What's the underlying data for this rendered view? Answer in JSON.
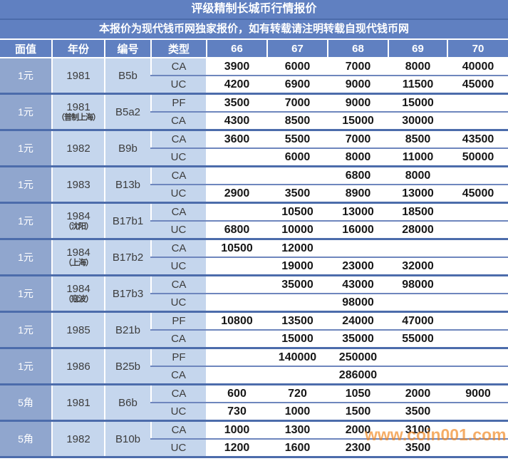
{
  "title": "评级精制长城币行情报价",
  "subtitle": "本报价为现代钱币网独家报价，如有转载请注明转载自现代钱币网",
  "columns": [
    "面值",
    "年份",
    "编号",
    "类型",
    "66",
    "67",
    "68",
    "69",
    "70"
  ],
  "watermark": {
    "text": "www.coin001.com",
    "color": "#F0861F"
  },
  "colors": {
    "header_blue": "#6080C1",
    "face_value_blue": "#90A6CE",
    "light_cell_blue": "#C5D6ED",
    "group_divider_blue": "#4C6CAB",
    "sub_divider_blue": "#6E86BD",
    "value_text": "#161616",
    "header_text": "#FFFFFF"
  },
  "rows": [
    {
      "face_value": "1元",
      "year": "1981",
      "year_note": "",
      "code": "B5b",
      "sub_rows": [
        {
          "type": "CA",
          "values": [
            "3900",
            "6000",
            "7000",
            "8000",
            "40000"
          ]
        },
        {
          "type": "UC",
          "values": [
            "4200",
            "6900",
            "9000",
            "11500",
            "45000"
          ]
        }
      ]
    },
    {
      "face_value": "1元",
      "year": "1981",
      "year_note": "（普制上海）",
      "code": "B5a2",
      "sub_rows": [
        {
          "type": "PF",
          "values": [
            "3500",
            "7000",
            "9000",
            "15000",
            ""
          ]
        },
        {
          "type": "CA",
          "values": [
            "4300",
            "8500",
            "15000",
            "30000",
            ""
          ]
        }
      ]
    },
    {
      "face_value": "1元",
      "year": "1982",
      "year_note": "",
      "code": "B9b",
      "sub_rows": [
        {
          "type": "CA",
          "values": [
            "3600",
            "5500",
            "7000",
            "8500",
            "43500"
          ]
        },
        {
          "type": "UC",
          "values": [
            "",
            "6000",
            "8000",
            "11000",
            "50000"
          ]
        }
      ]
    },
    {
      "face_value": "1元",
      "year": "1983",
      "year_note": "",
      "code": "B13b",
      "sub_rows": [
        {
          "type": "CA",
          "values": [
            "",
            "",
            "6800",
            "8000",
            ""
          ]
        },
        {
          "type": "UC",
          "values": [
            "2900",
            "3500",
            "8900",
            "13000",
            "45000"
          ]
        }
      ]
    },
    {
      "face_value": "1元",
      "year": "1984",
      "year_note": "（沈阳）",
      "code": "B17b1",
      "sub_rows": [
        {
          "type": "CA",
          "values": [
            "",
            "10500",
            "13000",
            "18500",
            ""
          ]
        },
        {
          "type": "UC",
          "values": [
            "6800",
            "10000",
            "16000",
            "28000",
            ""
          ]
        }
      ]
    },
    {
      "face_value": "1元",
      "year": "1984",
      "year_note": "（上海）",
      "code": "B17b2",
      "sub_rows": [
        {
          "type": "CA",
          "values": [
            "10500",
            "12000",
            "",
            "",
            ""
          ]
        },
        {
          "type": "UC",
          "values": [
            "",
            "19000",
            "23000",
            "32000",
            ""
          ]
        }
      ]
    },
    {
      "face_value": "1元",
      "year": "1984",
      "year_note": "（寇波）",
      "code": "B17b3",
      "sub_rows": [
        {
          "type": "CA",
          "values": [
            "",
            "35000",
            "43000",
            "98000",
            ""
          ]
        },
        {
          "type": "UC",
          "values": [
            "",
            "",
            "98000",
            "",
            ""
          ]
        }
      ]
    },
    {
      "face_value": "1元",
      "year": "1985",
      "year_note": "",
      "code": "B21b",
      "sub_rows": [
        {
          "type": "PF",
          "values": [
            "10800",
            "13500",
            "24000",
            "47000",
            ""
          ]
        },
        {
          "type": "CA",
          "values": [
            "",
            "15000",
            "35000",
            "55000",
            ""
          ]
        }
      ]
    },
    {
      "face_value": "1元",
      "year": "1986",
      "year_note": "",
      "code": "B25b",
      "sub_rows": [
        {
          "type": "PF",
          "values": [
            "",
            "140000",
            "250000",
            "",
            ""
          ]
        },
        {
          "type": "CA",
          "values": [
            "",
            "",
            "286000",
            "",
            ""
          ]
        }
      ]
    },
    {
      "face_value": "5角",
      "year": "1981",
      "year_note": "",
      "code": "B6b",
      "sub_rows": [
        {
          "type": "CA",
          "values": [
            "600",
            "720",
            "1050",
            "2000",
            "9000"
          ]
        },
        {
          "type": "UC",
          "values": [
            "730",
            "1000",
            "1500",
            "3500",
            ""
          ]
        }
      ]
    },
    {
      "face_value": "5角",
      "year": "1982",
      "year_note": "",
      "code": "B10b",
      "sub_rows": [
        {
          "type": "CA",
          "values": [
            "1000",
            "1300",
            "2000",
            "3100",
            ""
          ]
        },
        {
          "type": "UC",
          "values": [
            "1200",
            "1600",
            "2300",
            "3500",
            ""
          ]
        }
      ]
    }
  ]
}
